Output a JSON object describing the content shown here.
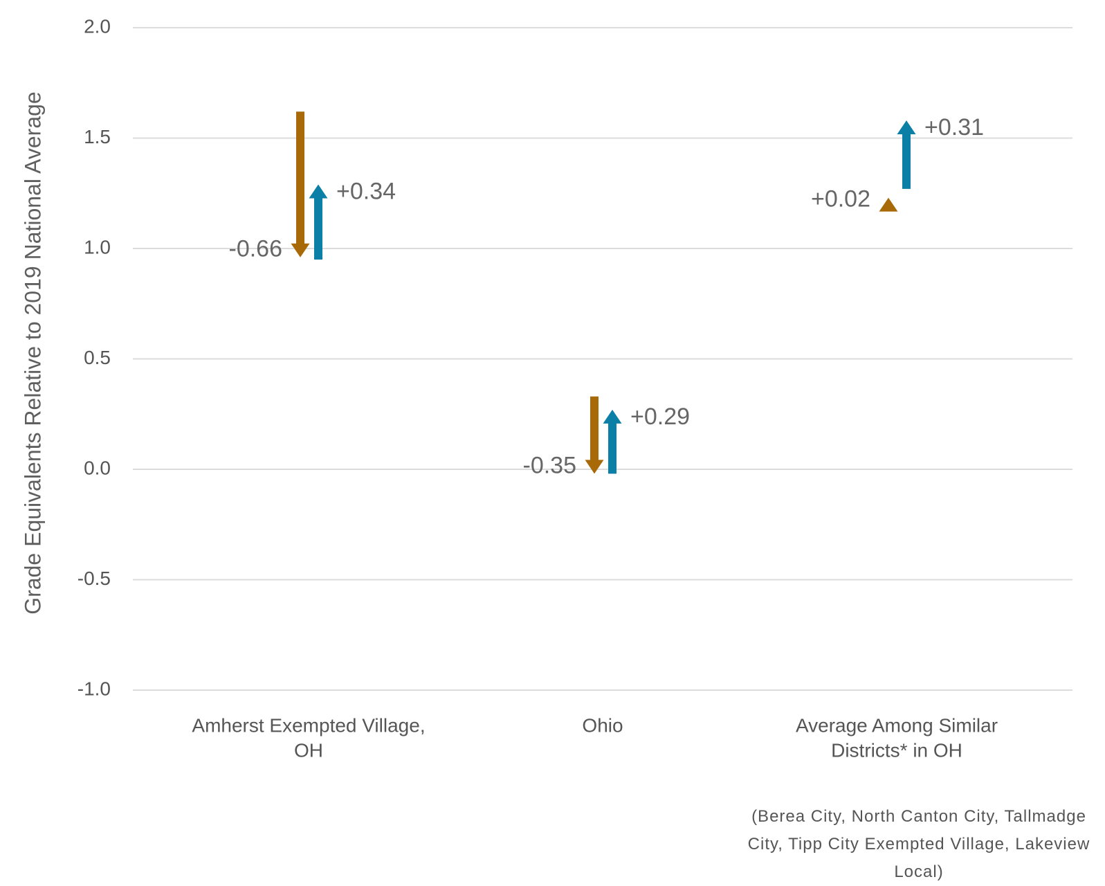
{
  "chart_data": {
    "type": "arrow",
    "ylabel": "Grade Equivalents Relative to 2019 National Average",
    "xlabel": "",
    "ylim": [
      -1.0,
      2.0
    ],
    "yticks": [
      2.0,
      1.5,
      1.0,
      0.5,
      0.0,
      -0.5,
      -1.0
    ],
    "ytick_labels": [
      "2.0",
      "1.5",
      "1.0",
      "0.5",
      "0.0",
      "-0.5",
      "-1.0"
    ],
    "grid": true,
    "categories": [
      [
        "Amherst Exempted Village,",
        "OH"
      ],
      [
        "Ohio"
      ],
      [
        "Average Among Similar",
        "Districts* in OH"
      ]
    ],
    "series": [
      {
        "color": "#a86a08",
        "points": [
          {
            "start": 1.62,
            "end": 0.96,
            "label": "-0.66"
          },
          {
            "start": 0.33,
            "end": -0.02,
            "label": "-0.35"
          },
          {
            "start": 1.21,
            "end": 1.23,
            "label": "+0.02"
          }
        ]
      },
      {
        "color": "#0c7fa6",
        "points": [
          {
            "start": 0.95,
            "end": 1.29,
            "label": "+0.34"
          },
          {
            "start": -0.02,
            "end": 0.27,
            "label": "+0.29"
          },
          {
            "start": 1.27,
            "end": 1.58,
            "label": "+0.31"
          }
        ]
      }
    ],
    "footnote": [
      "(Berea City, North Canton City, Tallmadge",
      "City, Tipp City Exempted Village, Lakeview",
      "Local)"
    ]
  }
}
